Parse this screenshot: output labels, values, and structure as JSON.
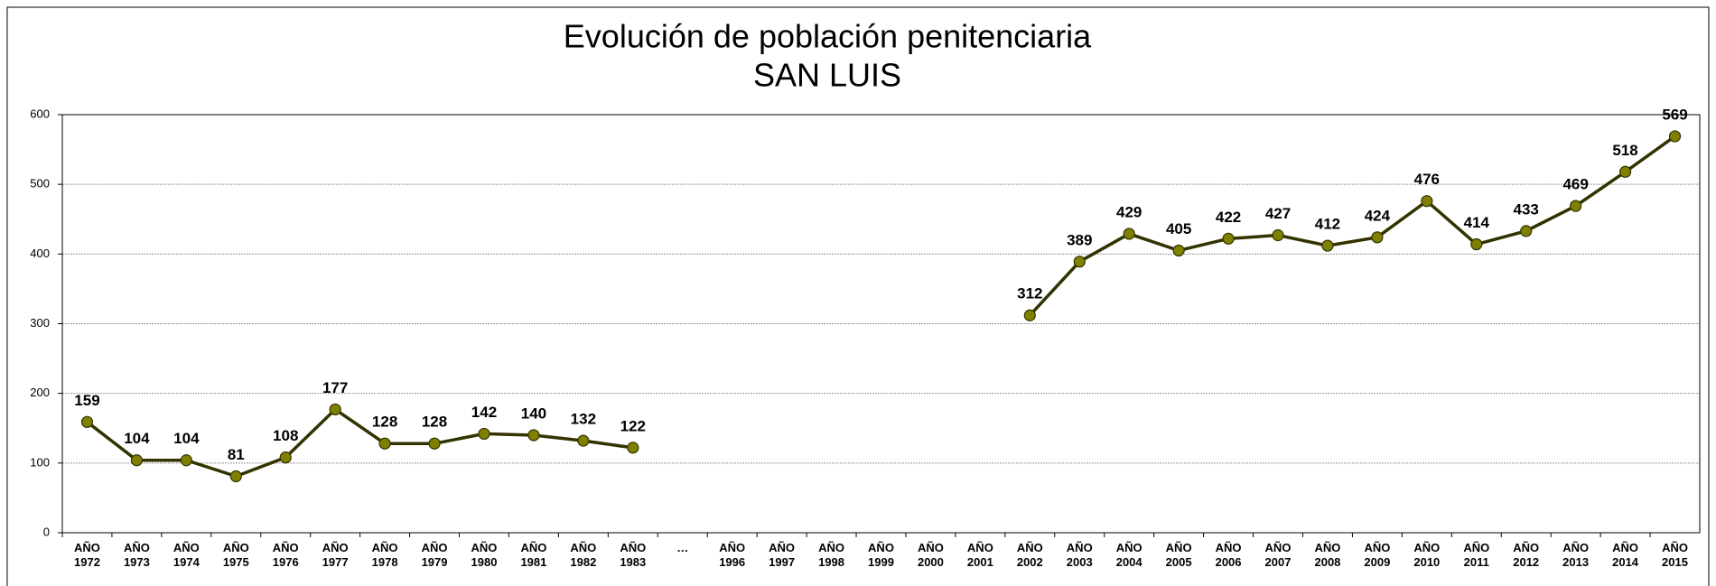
{
  "chart_data": {
    "type": "line",
    "title": "Evolución de población penitenciaria",
    "subtitle": "SAN LUIS",
    "categories": [
      "AÑO 1972",
      "AÑO 1973",
      "AÑO 1974",
      "AÑO 1975",
      "AÑO 1976",
      "AÑO 1977",
      "AÑO 1978",
      "AÑO 1979",
      "AÑO 1980",
      "AÑO 1981",
      "AÑO 1982",
      "AÑO 1983",
      "…",
      "AÑO 1996",
      "AÑO 1997",
      "AÑO 1998",
      "AÑO 1999",
      "AÑO 2000",
      "AÑO 2001",
      "AÑO 2002",
      "AÑO 2003",
      "AÑO 2004",
      "AÑO 2005",
      "AÑO 2006",
      "AÑO 2007",
      "AÑO 2008",
      "AÑO 2009",
      "AÑO 2010",
      "AÑO 2011",
      "AÑO 2012",
      "AÑO 2013",
      "AÑO 2014",
      "AÑO 2015"
    ],
    "values": [
      159,
      104,
      104,
      81,
      108,
      177,
      128,
      128,
      142,
      140,
      132,
      122,
      null,
      null,
      null,
      null,
      null,
      null,
      null,
      312,
      389,
      429,
      405,
      422,
      427,
      412,
      424,
      476,
      414,
      433,
      469,
      518,
      569
    ],
    "color": "#333300",
    "marker_color": "#808000",
    "ylim": [
      0,
      600
    ],
    "yticks": [
      0,
      100,
      200,
      300,
      400,
      500,
      600
    ],
    "grid": true
  }
}
